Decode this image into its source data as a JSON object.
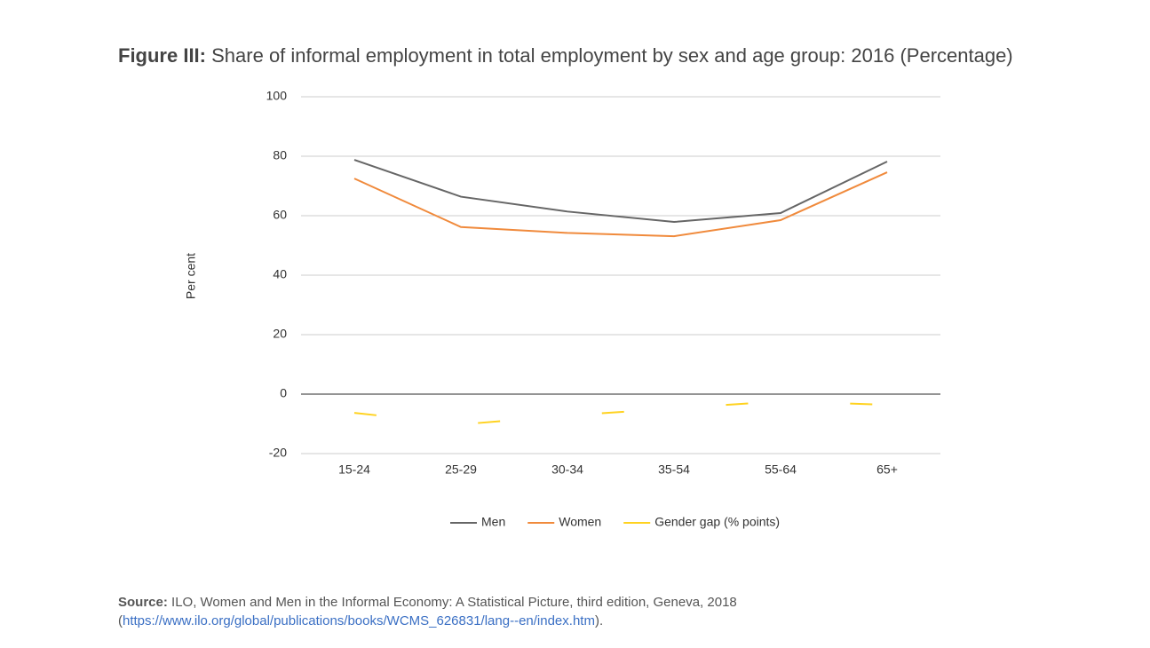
{
  "chart_data": {
    "type": "line",
    "title_label": "Figure III:",
    "title": "Share of informal employment in total employment by sex and age group: 2016 (Percentage)",
    "ylabel": "Per cent",
    "categories": [
      "15-24",
      "25-29",
      "30-34",
      "35-54",
      "55-64",
      "65+"
    ],
    "series": [
      {
        "name": "Men",
        "color": "#666666",
        "values": [
          78.8,
          66.4,
          61.4,
          57.9,
          60.9,
          78.2
        ]
      },
      {
        "name": "Women",
        "color": "#f08a3c",
        "values": [
          72.5,
          56.2,
          54.2,
          53.1,
          58.5,
          74.6
        ]
      },
      {
        "name": "Gender gap (% points)",
        "color": "#ffd21f",
        "dashed": true,
        "values": [
          -6.3,
          -10.2,
          -7.2,
          -4.8,
          -2.4,
          -3.6
        ]
      }
    ],
    "ylim": [
      -20,
      100
    ],
    "yticks": [
      -20,
      0,
      20,
      40,
      60,
      80,
      100
    ],
    "grid": true,
    "legend": "bottom"
  },
  "source": {
    "label": "Source:",
    "text": "ILO, Women and Men in the Informal Economy: A Statistical Picture, third edition, Geneva, 2018",
    "url_open": "(",
    "url": "https://www.ilo.org/global/publications/books/WCMS_626831/lang--en/index.htm",
    "url_close": ")."
  }
}
